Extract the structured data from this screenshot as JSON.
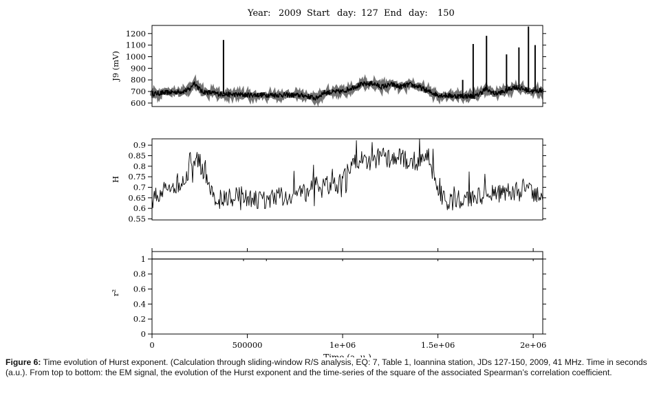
{
  "header": {
    "year_label": "Year:",
    "year": "2009",
    "start_label": "Start",
    "start_day_label": "day:",
    "start_day": "127",
    "end_label": "End",
    "end_day_label": "day:",
    "end_day": "150"
  },
  "caption": {
    "label": "Figure 6:",
    "text": "Time evolution of Hurst exponent. (Calculation through sliding-window R/S analysis, EQ: 7, Table 1, Ioannina station, JDs 127-150, 2009, 41 MHz. Time in seconds (a.u.). From top to bottom: the EM signal, the evolution of the Hurst exponent and the time-series of the square of the associated Spearman’s correlation coefficient."
  },
  "chart_data": [
    {
      "type": "line",
      "ylabel": "J9  (mV)",
      "xlim": [
        0,
        2050000
      ],
      "ylim": [
        570,
        1270
      ],
      "yticks": [
        600,
        700,
        800,
        900,
        1000,
        1100,
        1200
      ],
      "ytick_labels": [
        "600",
        "700",
        "800",
        "900",
        "1000",
        "1100",
        "1200"
      ],
      "x": [
        0,
        80000,
        160000,
        200000,
        220000,
        260000,
        300000,
        350000,
        400000,
        500000,
        600000,
        700000,
        800000,
        860000,
        900000,
        1000000,
        1060000,
        1100000,
        1160000,
        1200000,
        1260000,
        1300000,
        1350000,
        1400000,
        1450000,
        1500000,
        1600000,
        1700000,
        1750000,
        1800000,
        1850000,
        1900000,
        1950000,
        2000000,
        2040000
      ],
      "series": [
        {
          "values": [
            680,
            690,
            700,
            720,
            780,
            700,
            690,
            680,
            675,
            670,
            670,
            670,
            665,
            640,
            690,
            700,
            740,
            760,
            770,
            740,
            760,
            740,
            760,
            740,
            700,
            670,
            660,
            660,
            720,
            680,
            700,
            740,
            720,
            700,
            710
          ]
        }
      ],
      "spikes": [
        {
          "x": 375000,
          "y": 1145
        },
        {
          "x": 1630000,
          "y": 800
        },
        {
          "x": 1685000,
          "y": 1110
        },
        {
          "x": 1755000,
          "y": 1180
        },
        {
          "x": 1860000,
          "y": 1020
        },
        {
          "x": 1925000,
          "y": 1080
        },
        {
          "x": 1975000,
          "y": 1260
        },
        {
          "x": 2010000,
          "y": 1100
        }
      ]
    },
    {
      "type": "line",
      "ylabel": "H",
      "xlim": [
        0,
        2050000
      ],
      "ylim": [
        0.545,
        0.93
      ],
      "yticks": [
        0.55,
        0.6,
        0.65,
        0.7,
        0.75,
        0.8,
        0.85,
        0.9
      ],
      "ytick_labels": [
        "0.55",
        "0.6",
        "0.65",
        "0.7",
        "0.75",
        "0.8",
        "0.85",
        "0.9"
      ],
      "x": [
        0,
        50000,
        100000,
        150000,
        200000,
        240000,
        280000,
        300000,
        350000,
        400000,
        450000,
        500000,
        600000,
        700000,
        800000,
        850000,
        900000,
        950000,
        1000000,
        1050000,
        1100000,
        1150000,
        1200000,
        1250000,
        1300000,
        1350000,
        1400000,
        1450000,
        1500000,
        1550000,
        1600000,
        1700000,
        1800000,
        1900000,
        1950000,
        2000000,
        2050000
      ],
      "series": [
        {
          "values": [
            0.64,
            0.68,
            0.7,
            0.72,
            0.78,
            0.84,
            0.76,
            0.68,
            0.64,
            0.65,
            0.66,
            0.64,
            0.64,
            0.66,
            0.67,
            0.7,
            0.72,
            0.7,
            0.73,
            0.8,
            0.84,
            0.82,
            0.85,
            0.83,
            0.84,
            0.82,
            0.8,
            0.85,
            0.68,
            0.63,
            0.64,
            0.66,
            0.67,
            0.68,
            0.7,
            0.66,
            0.65
          ]
        }
      ]
    },
    {
      "type": "line",
      "ylabel": "r²",
      "xlabel": "Time   (a. u.)",
      "xlim": [
        0,
        2050000
      ],
      "ylim": [
        0,
        1.1
      ],
      "yticks": [
        0,
        0.2,
        0.4,
        0.6,
        0.8,
        1
      ],
      "ytick_labels": [
        "0",
        "0.2",
        "0.4",
        "0.6",
        "0.8",
        "1"
      ],
      "xticks": [
        0,
        500000,
        1000000,
        1500000,
        2000000
      ],
      "xtick_labels": [
        "0",
        "500000",
        "1e+06",
        "1.5e+06",
        "2e+06"
      ],
      "x": [
        0,
        2050000
      ],
      "series": [
        {
          "values": [
            1,
            1
          ]
        }
      ]
    }
  ]
}
